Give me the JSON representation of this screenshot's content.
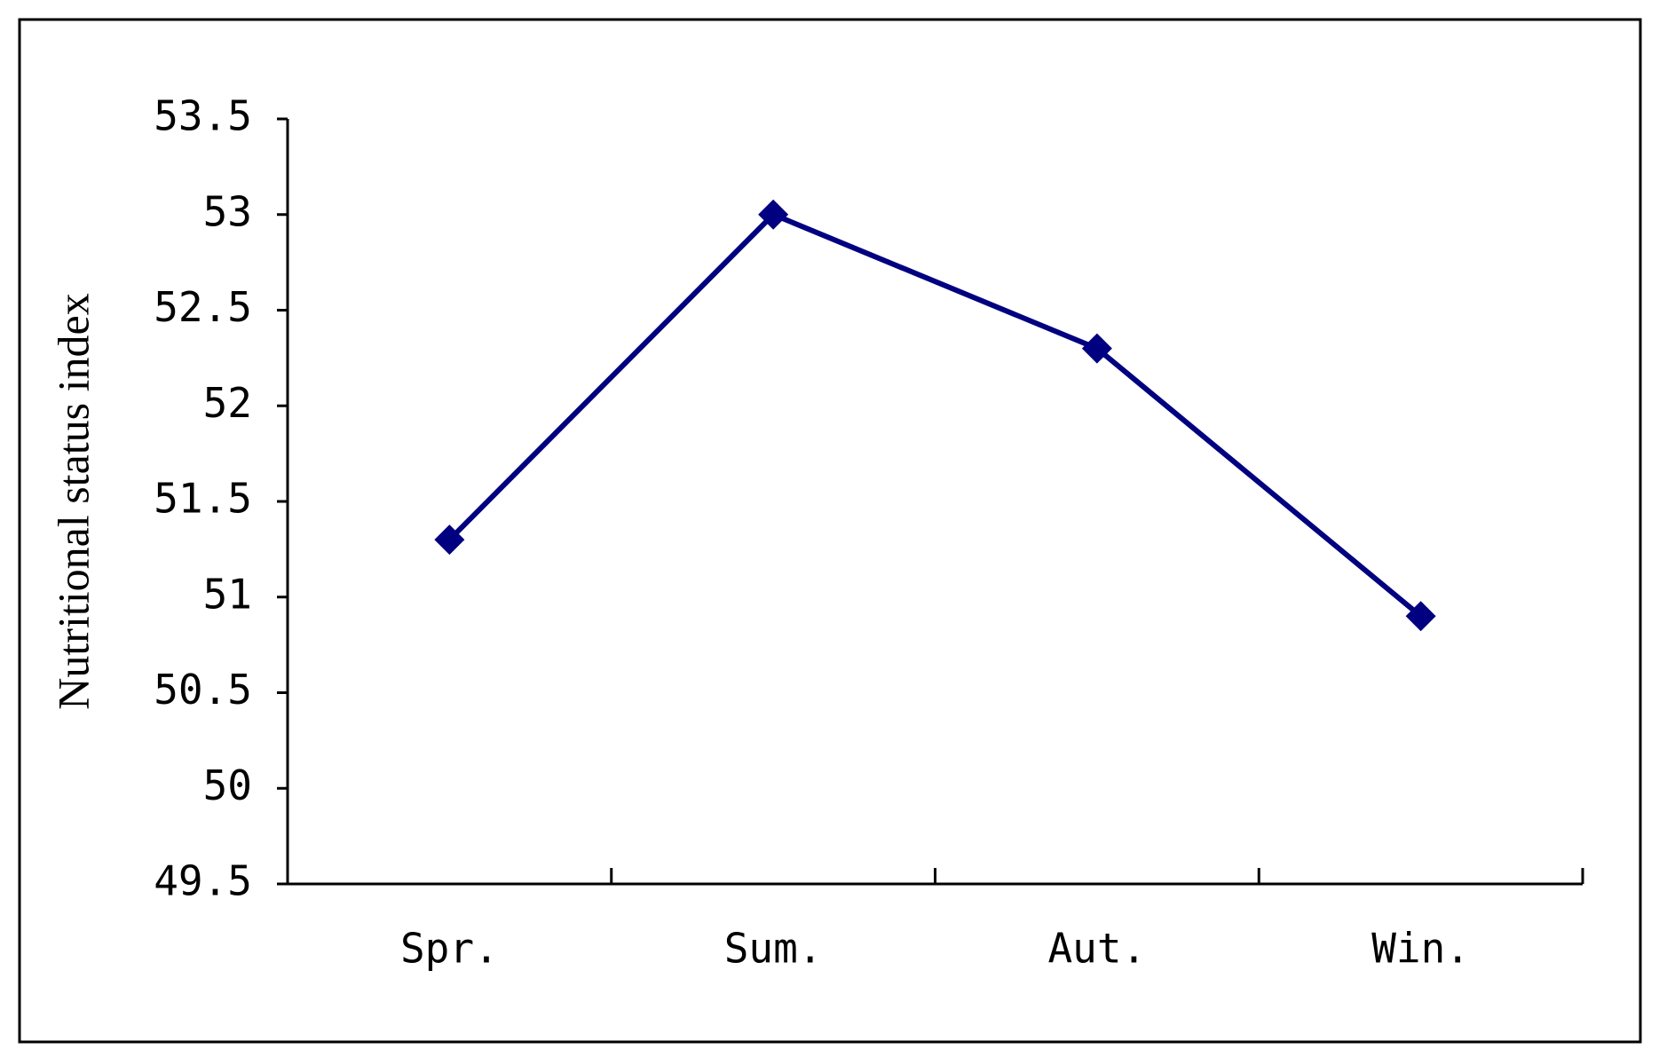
{
  "chart_data": {
    "type": "line",
    "y_label": "Nutritional status index",
    "categories": [
      "Spr.",
      "Sum.",
      "Aut.",
      "Win."
    ],
    "series": [
      {
        "color": "#000080",
        "values": [
          51.3,
          53.0,
          52.3,
          50.9
        ]
      }
    ],
    "ylim": [
      49.5,
      53.5
    ],
    "yticks": [
      49.5,
      50,
      50.5,
      51,
      51.5,
      52,
      52.5,
      53,
      53.5
    ],
    "grid": false
  }
}
